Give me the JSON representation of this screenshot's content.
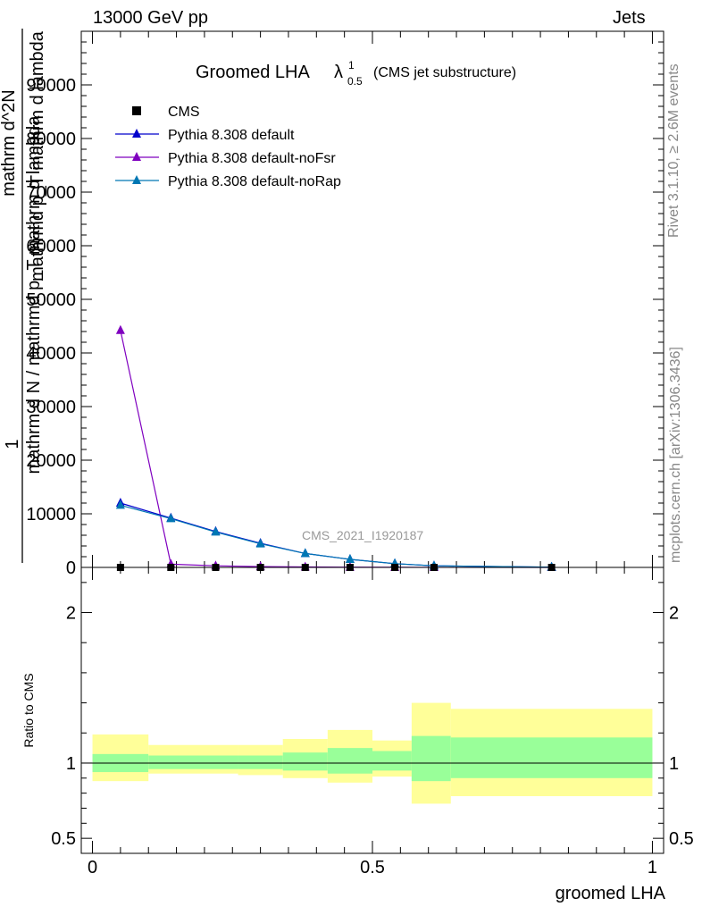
{
  "header": {
    "left": "13000 GeV pp",
    "right": "Jets"
  },
  "side_labels": {
    "rivet": "Rivet 3.1.10, ≥ 2.6M events",
    "mcplots": "mcplots.cern.ch [arXiv:1306.3436]"
  },
  "colors": {
    "cms": "#000000",
    "default": "#0000cc",
    "noFsr": "#7f00bf",
    "noRap": "#0077b3",
    "band_inner": "#99ff99",
    "band_outer": "#ffff99"
  },
  "chart_data": [
    {
      "type": "line",
      "title_main": "Groomed LHA",
      "title_lambda": "λ",
      "title_sup": "1",
      "title_sub": "0.5",
      "title_suffix": "(CMS jet substructure)",
      "ylabel_numerator": "1",
      "ylabel_lines": [
        "mathrm d N / mathrmd p_T mathrm d lambda",
        "mathrm d^2N",
        "mathrmd p_T mathrm d lambda"
      ],
      "watermark": "CMS_2021_I1920187",
      "xlim": [
        -0.02,
        1.02
      ],
      "ylim": [
        0,
        100000
      ],
      "yticks": [
        0,
        10000,
        20000,
        30000,
        40000,
        50000,
        60000,
        70000,
        80000,
        90000
      ],
      "ytick_labels": [
        "0",
        "10000",
        "20000",
        "30000",
        "40000",
        "50000",
        "60000",
        "70000",
        "80000",
        "90000"
      ],
      "legend_position": "top-left",
      "series": [
        {
          "name": "CMS",
          "marker": "square",
          "x": [
            0.05,
            0.14,
            0.22,
            0.3,
            0.38,
            0.46,
            0.54,
            0.61,
            0.82
          ],
          "y": [
            0,
            0,
            0,
            0,
            0,
            0,
            0,
            0,
            0
          ]
        },
        {
          "name": "Pythia 8.308 default",
          "marker": "triangle",
          "x": [
            0.05,
            0.14,
            0.22,
            0.3,
            0.38,
            0.46,
            0.54,
            0.61,
            0.82
          ],
          "y": [
            12000,
            9200,
            6700,
            4500,
            2600,
            1500,
            700,
            300,
            50
          ]
        },
        {
          "name": "Pythia 8.308 default-noFsr",
          "marker": "triangle",
          "x": [
            0.05,
            0.14,
            0.22,
            0.3,
            0.38,
            0.46,
            0.54,
            0.61,
            0.82
          ],
          "y": [
            44200,
            600,
            300,
            150,
            80,
            40,
            20,
            10,
            5
          ]
        },
        {
          "name": "Pythia 8.308 default-noRap",
          "marker": "triangle",
          "x": [
            0.05,
            0.14,
            0.22,
            0.3,
            0.38,
            0.46,
            0.54,
            0.61,
            0.82
          ],
          "y": [
            11600,
            9100,
            6600,
            4400,
            2600,
            1500,
            700,
            300,
            50
          ]
        }
      ]
    },
    {
      "type": "area",
      "ylabel": "Ratio to CMS",
      "xlabel": "groomed LHA",
      "ylim": [
        0.4,
        2.3
      ],
      "yticks": [
        0.5,
        1,
        2
      ],
      "ytick_labels": [
        "0.5",
        "1",
        "2"
      ],
      "xticks": [
        0,
        0.5,
        1
      ],
      "xtick_labels": [
        "0",
        "0.5",
        "1"
      ],
      "bins": [
        {
          "lo": 0.0,
          "hi": 0.1,
          "inner": [
            0.94,
            1.06
          ],
          "outer": [
            0.88,
            1.19
          ]
        },
        {
          "lo": 0.1,
          "hi": 0.26,
          "inner": [
            0.96,
            1.05
          ],
          "outer": [
            0.93,
            1.12
          ]
        },
        {
          "lo": 0.26,
          "hi": 0.34,
          "inner": [
            0.96,
            1.05
          ],
          "outer": [
            0.92,
            1.12
          ]
        },
        {
          "lo": 0.34,
          "hi": 0.42,
          "inner": [
            0.95,
            1.07
          ],
          "outer": [
            0.9,
            1.16
          ]
        },
        {
          "lo": 0.42,
          "hi": 0.5,
          "inner": [
            0.93,
            1.1
          ],
          "outer": [
            0.87,
            1.22
          ]
        },
        {
          "lo": 0.5,
          "hi": 0.57,
          "inner": [
            0.95,
            1.08
          ],
          "outer": [
            0.91,
            1.15
          ]
        },
        {
          "lo": 0.57,
          "hi": 0.64,
          "inner": [
            0.88,
            1.18
          ],
          "outer": [
            0.73,
            1.4
          ]
        },
        {
          "lo": 0.64,
          "hi": 1.0,
          "inner": [
            0.9,
            1.17
          ],
          "outer": [
            0.78,
            1.36
          ]
        }
      ],
      "reference": 1
    }
  ]
}
